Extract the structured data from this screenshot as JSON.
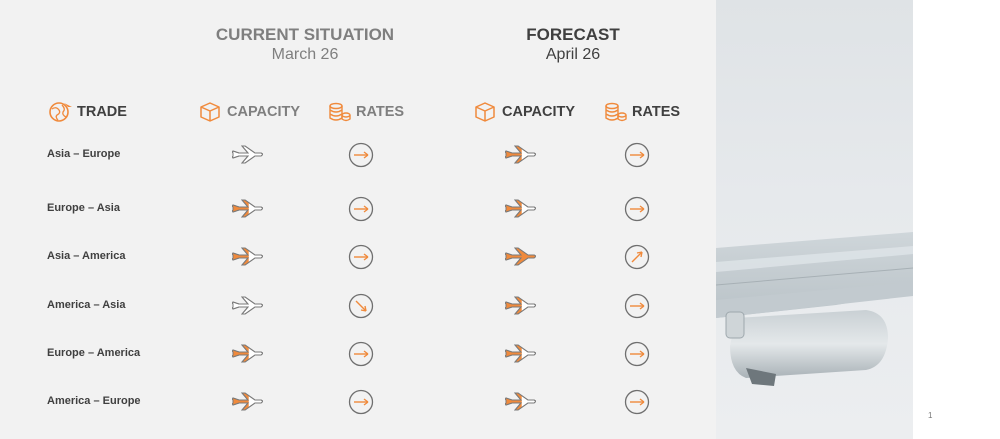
{
  "current": {
    "title": "CURRENT SITUATION",
    "date": "March 26"
  },
  "forecast": {
    "title": "FORECAST",
    "date": "April 26"
  },
  "columns": {
    "trade": "TRADE",
    "capacity": "CAPACITY",
    "rates": "RATES"
  },
  "colors": {
    "accent": "#f08a3c",
    "plane_outline": "#7a7a7a",
    "arrow": "#f08a3c",
    "circle": "#6f6f6f",
    "panel": "#f2f2f2"
  },
  "rows": [
    {
      "trade": "Asia – Europe",
      "current_capacity": "low",
      "current_rate": "flat",
      "forecast_capacity": "medium",
      "forecast_rate": "flat"
    },
    {
      "trade": "Europe – Asia",
      "current_capacity": "medium",
      "current_rate": "flat",
      "forecast_capacity": "medium",
      "forecast_rate": "flat"
    },
    {
      "trade": "Asia – America",
      "current_capacity": "medium",
      "current_rate": "flat",
      "forecast_capacity": "high",
      "forecast_rate": "up"
    },
    {
      "trade": "America – Asia",
      "current_capacity": "low",
      "current_rate": "down",
      "forecast_capacity": "medium",
      "forecast_rate": "flat"
    },
    {
      "trade": "Europe – America",
      "current_capacity": "medium",
      "current_rate": "flat",
      "forecast_capacity": "medium",
      "forecast_rate": "flat"
    },
    {
      "trade": "America – Europe",
      "current_capacity": "medium",
      "current_rate": "flat",
      "forecast_capacity": "medium",
      "forecast_rate": "flat"
    }
  ],
  "page_number": "1"
}
